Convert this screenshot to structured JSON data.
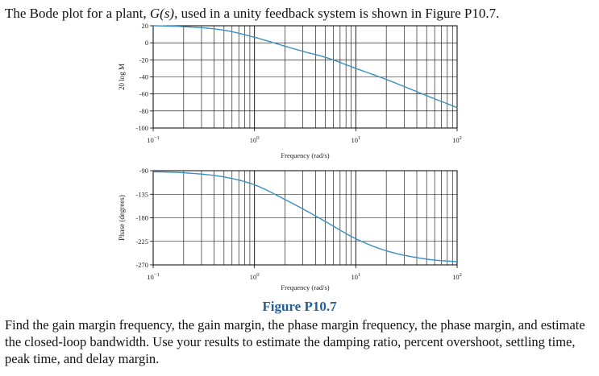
{
  "problem": {
    "intro_before": "The Bode plot for a plant, ",
    "intro_math": "G(s)",
    "intro_after": ", used in a unity feedback system is shown in Figure P10.7.",
    "figure_caption": "Figure P10.7",
    "question": "Find the gain margin frequency, the gain margin, the phase margin frequency, the phase margin, and estimate the closed-loop bandwidth.  Use your results to estimate the damping ratio, percent overshoot, settling time, peak time, and delay margin."
  },
  "colors": {
    "curve": "#3a8fc1",
    "grid": "#000000",
    "caption": "#1f5f9a"
  },
  "chart_data": [
    {
      "type": "line",
      "xlabel": "Frequency (rad/s)",
      "ylabel": "20 log M",
      "xscale": "log",
      "xlim": [
        0.1,
        100
      ],
      "ylim": [
        -100,
        20
      ],
      "xticks": [
        {
          "base": "10",
          "exp": "−1"
        },
        {
          "base": "10",
          "exp": "0"
        },
        {
          "base": "10",
          "exp": "1"
        },
        {
          "base": "10",
          "exp": "2"
        }
      ],
      "yticks": [
        "20",
        "0",
        "-20",
        "-40",
        "-60",
        "-80",
        "-100"
      ],
      "grid": true,
      "series": [
        {
          "x": [
            0.1,
            0.2,
            0.5,
            1,
            2,
            3,
            5,
            10,
            20,
            50,
            100
          ],
          "y": [
            20,
            19,
            14.8,
            6.5,
            -4,
            -10,
            -17,
            -30,
            -43,
            -62,
            -76
          ]
        }
      ]
    },
    {
      "type": "line",
      "xlabel": "Frequency (rad/s)",
      "ylabel": "Phase (degrees)",
      "xscale": "log",
      "xlim": [
        0.1,
        100
      ],
      "ylim": [
        -270,
        -90
      ],
      "xticks": [
        {
          "base": "10",
          "exp": "−1"
        },
        {
          "base": "10",
          "exp": "0"
        },
        {
          "base": "10",
          "exp": "1"
        },
        {
          "base": "10",
          "exp": "2"
        }
      ],
      "yticks": [
        "-90",
        "-135",
        "-180",
        "-225",
        "-270"
      ],
      "grid": true,
      "series": [
        {
          "x": [
            0.1,
            0.2,
            0.5,
            1,
            2,
            3,
            5,
            10,
            20,
            50,
            100
          ],
          "y": [
            -92,
            -94,
            -102,
            -117,
            -145,
            -163,
            -187,
            -220,
            -243,
            -259,
            -264
          ]
        }
      ]
    }
  ]
}
